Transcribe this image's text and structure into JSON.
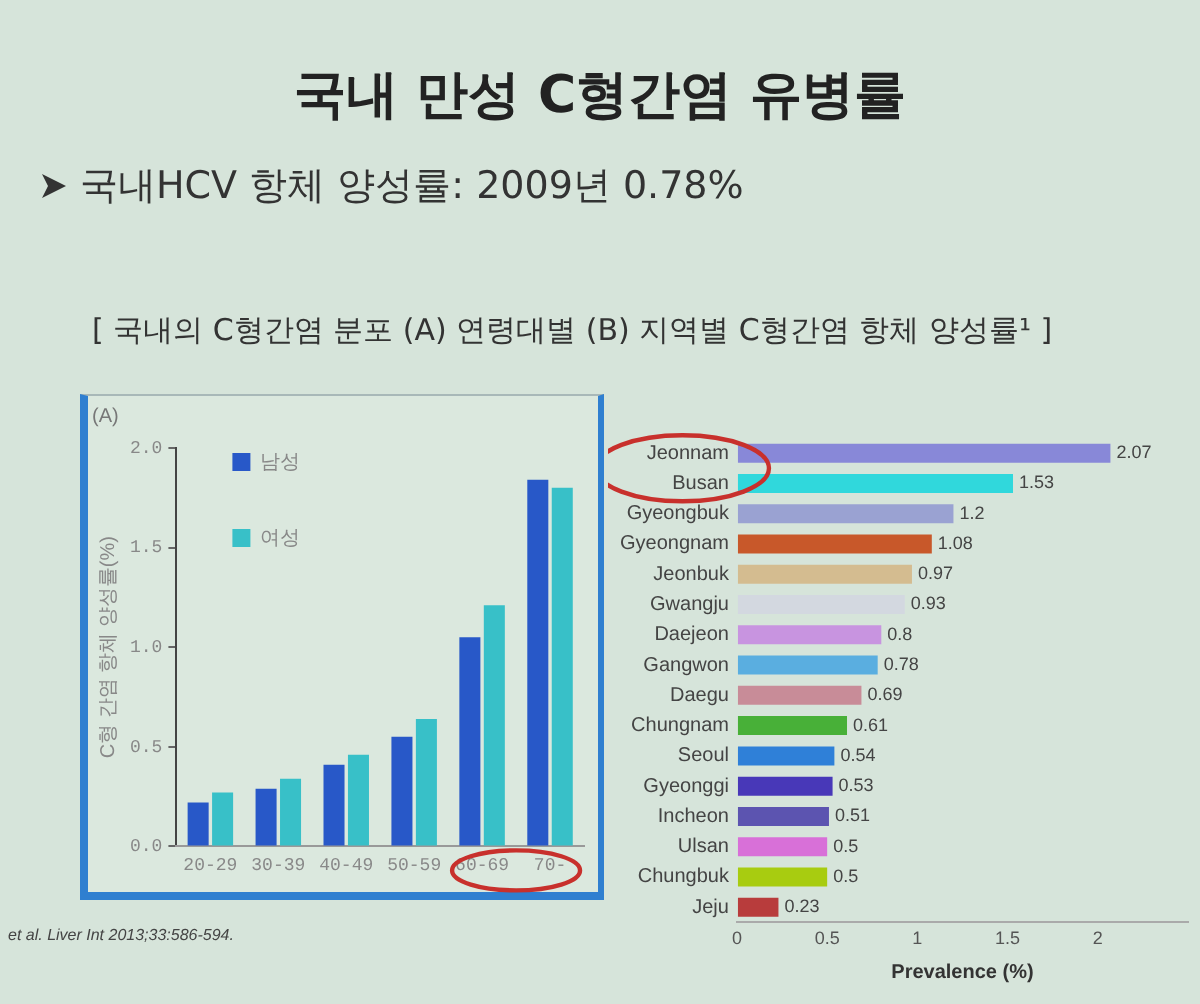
{
  "chart_data": [
    {
      "type": "other",
      "title": "국내 만성 C형간염 유병률",
      "subtitle": "국내HCV 항체 양성률: 2009년 0.78%",
      "annotations": [
        "[ 국내의 C형간염 분포 (A) 연령대별 (B) 지역별 C형간염 항체 양성률¹ ]"
      ]
    },
    {
      "type": "bar",
      "title": "(A)",
      "categories": [
        "20-29",
        "30-39",
        "40-49",
        "50-59",
        "60-69",
        "70-"
      ],
      "series": [
        {
          "name": "남성",
          "color": "#2858c8",
          "values": [
            0.22,
            0.29,
            0.41,
            0.55,
            1.05,
            1.84
          ]
        },
        {
          "name": "여성",
          "color": "#38c0c8",
          "values": [
            0.27,
            0.34,
            0.46,
            0.64,
            1.21,
            1.8
          ]
        }
      ],
      "ylabel": "C형 간염 항체 양성률(%)",
      "ylim": [
        0,
        2
      ],
      "yticks": [
        {
          "value": 0,
          "label": "0.0"
        },
        0.5,
        {
          "value": 1,
          "label": "1.0"
        },
        1.5,
        {
          "value": 2,
          "label": "2.0"
        }
      ],
      "legend": "top left",
      "annotations": [
        "et al. Liver Int 2013;33:586-594."
      ]
    },
    {
      "type": "bar",
      "orientation": "horizontal",
      "categories": [
        "Jeonnam",
        "Busan",
        "Gyeongbuk",
        "Gyeongnam",
        "Jeonbuk",
        "Gwangju",
        "Daejeon",
        "Gangwon",
        "Daegu",
        "Chungnam",
        "Seoul",
        "Gyeonggi",
        "Incheon",
        "Ulsan",
        "Chungbuk",
        "Jeju"
      ],
      "values": [
        2.07,
        1.53,
        1.2,
        1.08,
        0.97,
        0.93,
        0.8,
        0.78,
        0.69,
        0.61,
        0.54,
        0.53,
        0.51,
        0.5,
        0.5,
        0.23
      ],
      "colors": [
        "#8888d8",
        "#30d8dc",
        "#9aa2d2",
        "#c8582a",
        "#d4bc90",
        "#d3d8e0",
        "#c894e0",
        "#5aaee0",
        "#c88c98",
        "#48b038",
        "#2f80d8",
        "#4838b8",
        "#5c54b0",
        "#d870d8",
        "#a8cc10",
        "#b83c3c"
      ],
      "xlabel": "Prevalence (%)",
      "xlim": [
        0,
        2.5
      ],
      "xticks": [
        0,
        0.5,
        1,
        1.5,
        2
      ],
      "data_labels": true
    }
  ]
}
